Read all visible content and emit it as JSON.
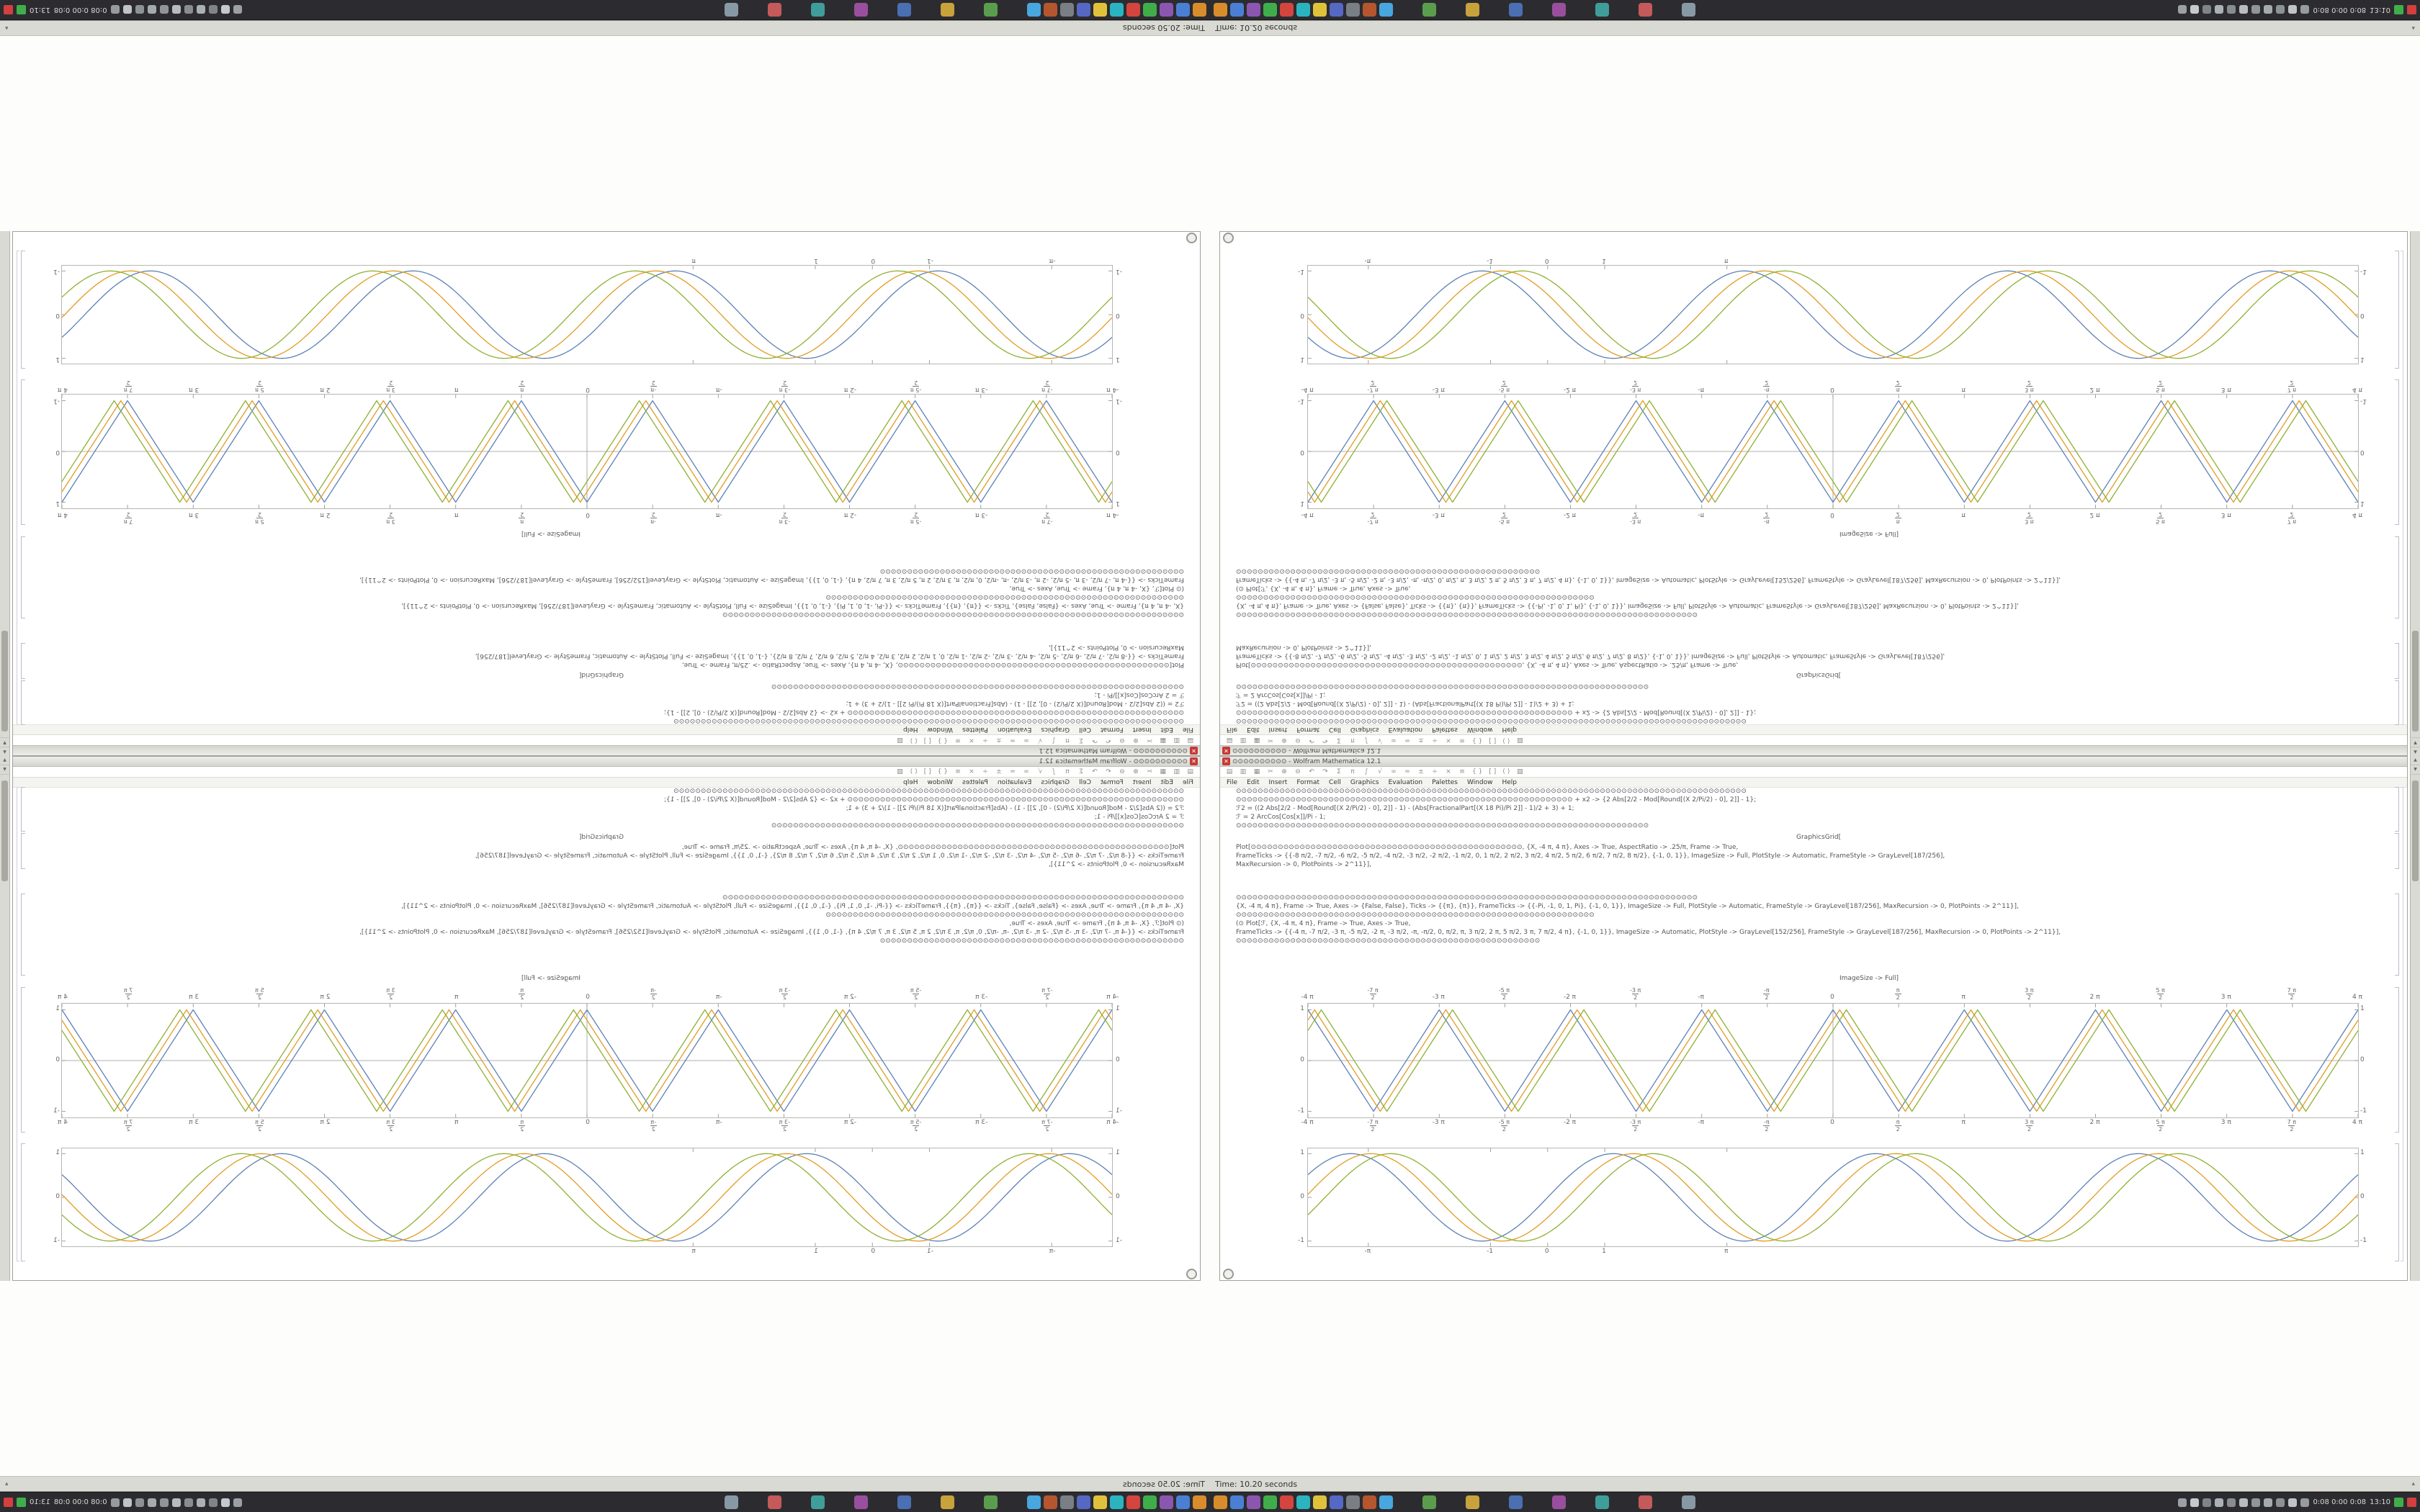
{
  "app": {
    "name": "Wolfram Mathematica",
    "version": "12.1"
  },
  "window": {
    "title": "⊙⊙⊙⊙⊙⊙⊙⊙⊙⊙ - Wolfram Mathematica 12.1",
    "close_glyph": "✕",
    "menu_items": [
      "File",
      "Edit",
      "Insert",
      "Format",
      "Cell",
      "Graphics",
      "Evaluation",
      "Palettes",
      "Window",
      "Help"
    ],
    "toolbar_glyphs": [
      "▤",
      "▥",
      "▦",
      "✂",
      "⊕",
      "⊖",
      "↶",
      "↷",
      "Σ",
      "π",
      "∫",
      "√",
      "∞",
      "≈",
      "±",
      "÷",
      "×",
      "≡",
      "{ }",
      "[ ]",
      "( )",
      "▧"
    ]
  },
  "scrollbar": {
    "up_glyph": "▲",
    "down_glyph": "▼"
  },
  "code_cells": {
    "cell1_lines": [
      "⊙⊙⊙⊙⊙⊙⊙⊙⊙⊙⊙⊙⊙⊙⊙⊙⊙⊙⊙⊙⊙⊙⊙⊙⊙⊙⊙⊙⊙⊙⊙⊙⊙⊙⊙⊙⊙⊙⊙⊙⊙⊙⊙⊙⊙⊙⊙⊙⊙⊙⊙⊙⊙⊙⊙⊙⊙⊙⊙⊙⊙⊙⊙⊙⊙⊙⊙⊙⊙⊙⊙⊙⊙⊙⊙⊙⊙⊙⊙⊙⊙⊙⊙⊙⊙⊙⊙⊙⊙⊙⊙⊙⊙⊙",
      "⊙⊙⊙⊙⊙⊙⊙⊙⊙⊙⊙⊙⊙⊙⊙⊙⊙⊙⊙⊙⊙⊙⊙⊙⊙⊙⊙⊙⊙⊙⊙⊙⊙⊙⊙⊙⊙⊙⊙⊙⊙⊙⊙⊙⊙⊙⊙⊙⊙⊙⊙⊙⊙⊙⊙⊙⊙⊙⊙⊙⊙⊙ + x2 -> {2 Abs[2/2 - Mod[Round[(X 2/Pi/2) - 0], 2]] - 1};",
      "ℱ2 = ((2 Abs[2/2 - Mod[Round[(X 2/Pi/2) - 0], 2]] - 1) - (Abs[FractionalPart[(X 18 Pi)/Pi 2]] - 1)/2 + 3) + 1;",
      "ℱ = 2 ArcCos[Cos[x]]/Pi - 1;",
      "⊙⊙⊙⊙⊙⊙⊙⊙⊙⊙⊙⊙⊙⊙⊙⊙⊙⊙⊙⊙⊙⊙⊙⊙⊙⊙⊙⊙⊙⊙⊙⊙⊙⊙⊙⊙⊙⊙⊙⊙⊙⊙⊙⊙⊙⊙⊙⊙⊙⊙⊙⊙⊙⊙⊙⊙⊙⊙⊙⊙⊙⊙⊙⊙⊙⊙⊙⊙⊙⊙⊙⊙⊙⊙⊙⊙"
    ],
    "graphicsgrid_line": "GraphicsGrid[",
    "cell2_lines": [
      "Plot[⊙⊙⊙⊙⊙⊙⊙⊙⊙⊙⊙⊙⊙⊙⊙⊙⊙⊙⊙⊙⊙⊙⊙⊙⊙⊙⊙⊙⊙⊙⊙⊙⊙⊙⊙⊙⊙⊙⊙⊙⊙⊙⊙⊙⊙⊙⊙⊙⊙⊙, {X, -4 π, 4 π}, Axes -> True, AspectRatio -> .25/π, Frame -> True,",
      "FrameTicks -> {{-8 π/2, -7 π/2, -6 π/2, -5 π/2, -4 π/2, -3 π/2, -2 π/2, -1 π/2, 0, 1 π/2, 2 π/2, 3 π/2, 4 π/2, 5 π/2, 6 π/2, 7 π/2, 8 π/2}, {-1, 0, 1}}, ImageSize -> Full, PlotStyle -> Automatic, FrameStyle -> GrayLevel[187/256],",
      "MaxRecursion -> 0, PlotPoints -> 2^11}],"
    ],
    "cell3_lines": [
      "⊙⊙⊙⊙⊙⊙⊙⊙⊙⊙⊙⊙⊙⊙⊙⊙⊙⊙⊙⊙⊙⊙⊙⊙⊙⊙⊙⊙⊙⊙⊙⊙⊙⊙⊙⊙⊙⊙⊙⊙⊙⊙⊙⊙⊙⊙⊙⊙⊙⊙⊙⊙⊙⊙⊙⊙⊙⊙⊙⊙⊙⊙⊙⊙⊙⊙⊙⊙⊙⊙⊙⊙⊙⊙⊙⊙⊙⊙⊙⊙⊙⊙⊙⊙⊙",
      "{X, -4 π, 4 π}, Frame -> True, Axes -> {False, False}, Ticks -> {{π}, {π}}, FrameTicks -> {{-Pi, -1, 0, 1, Pi}, {-1, 0, 1}}, ImageSize -> Full, PlotStyle -> Automatic, FrameStyle -> GrayLevel[187/256], MaxRecursion -> 0, PlotPoints -> 2^11}],",
      "⊙⊙⊙⊙⊙⊙⊙⊙⊙⊙⊙⊙⊙⊙⊙⊙⊙⊙⊙⊙⊙⊙⊙⊙⊙⊙⊙⊙⊙⊙⊙⊙⊙⊙⊙⊙⊙⊙⊙⊙⊙⊙⊙⊙⊙⊙⊙⊙⊙⊙⊙⊙⊙⊙⊙⊙⊙⊙⊙⊙⊙⊙⊙⊙⊙⊙",
      "(⊙ Plot[ℱ, {X, -4 π, 4 π}, Frame -> True, Axes -> True,",
      "FrameTicks -> {{-4 π, -7 π/2, -3 π, -5 π/2, -2 π, -3 π/2, -π, -π/2, 0, π/2, π, 3 π/2, 2 π, 5 π/2, 3 π, 7 π/2, 4 π}, {-1, 0, 1}}, ImageSize -> Automatic, PlotStyle -> GrayLevel[152/256], FrameStyle -> GrayLevel[187/256], MaxRecursion -> 0, PlotPoints -> 2^11}],",
      "⊙⊙⊙⊙⊙⊙⊙⊙⊙⊙⊙⊙⊙⊙⊙⊙⊙⊙⊙⊙⊙⊙⊙⊙⊙⊙⊙⊙⊙⊙⊙⊙⊙⊙⊙⊙⊙⊙⊙⊙⊙⊙⊙⊙⊙⊙⊙⊙⊙⊙⊙⊙⊙⊙⊙⊙"
    ],
    "closing_line": "ImageSize -> Full]"
  },
  "chart_data": [
    {
      "type": "line",
      "name": "triangle-wave-plot",
      "title": "",
      "xlabel": "",
      "ylabel": "",
      "xlim": [
        -12.566,
        12.566
      ],
      "ylim": [
        -1.12,
        1.12
      ],
      "frame": true,
      "axes": true,
      "grid": false,
      "label_sides": {
        "top": true,
        "bottom": true,
        "left": true,
        "right": true
      },
      "x_ticks": [
        {
          "v": -12.566,
          "l": "-4 π"
        },
        {
          "v": -10.996,
          "l": "-7 π/2"
        },
        {
          "v": -9.4248,
          "l": "-3 π"
        },
        {
          "v": -7.854,
          "l": "-5 π/2"
        },
        {
          "v": -6.2832,
          "l": "-2 π"
        },
        {
          "v": -4.7124,
          "l": "-3 π/2"
        },
        {
          "v": -3.1416,
          "l": "-π"
        },
        {
          "v": -1.5708,
          "l": "-π/2"
        },
        {
          "v": 0,
          "l": "0"
        },
        {
          "v": 1.5708,
          "l": "π/2"
        },
        {
          "v": 3.1416,
          "l": "π"
        },
        {
          "v": 4.7124,
          "l": "3 π/2"
        },
        {
          "v": 6.2832,
          "l": "2 π"
        },
        {
          "v": 7.854,
          "l": "5 π/2"
        },
        {
          "v": 9.4248,
          "l": "3 π"
        },
        {
          "v": 10.996,
          "l": "7 π/2"
        },
        {
          "v": 12.566,
          "l": "4 π"
        }
      ],
      "y_ticks": [
        {
          "v": -1,
          "l": "-1"
        },
        {
          "v": 0,
          "l": "0"
        },
        {
          "v": 1,
          "l": "1"
        }
      ],
      "series": [
        {
          "name": "wave-1",
          "color": "#5E81B5",
          "wave": "triangle",
          "period": 3.1416,
          "phase": 0
        },
        {
          "name": "wave-2",
          "color": "#E19C24",
          "wave": "triangle",
          "period": 3.1416,
          "phase": 0.16
        },
        {
          "name": "wave-3",
          "color": "#8FB032",
          "wave": "triangle",
          "period": 3.1416,
          "phase": 0.32
        }
      ]
    },
    {
      "type": "line",
      "name": "sine-wave-plot",
      "title": "",
      "xlabel": "",
      "ylabel": "",
      "xlim": [
        -4.2,
        14.2
      ],
      "ylim": [
        -1.12,
        1.12
      ],
      "frame": true,
      "axes": false,
      "grid": false,
      "label_sides": {
        "top": false,
        "bottom": true,
        "left": true,
        "right": true
      },
      "x_ticks": [
        {
          "v": -3.1416,
          "l": "-π"
        },
        {
          "v": -1,
          "l": "-1"
        },
        {
          "v": 0,
          "l": "0"
        },
        {
          "v": 1,
          "l": "1"
        },
        {
          "v": 3.1416,
          "l": "π"
        }
      ],
      "y_ticks": [
        {
          "v": -1,
          "l": "-1"
        },
        {
          "v": 0,
          "l": "0"
        },
        {
          "v": 1,
          "l": "1"
        }
      ],
      "series": [
        {
          "name": "wave-1",
          "color": "#5E81B5",
          "wave": "sine",
          "period": 4.6,
          "phase": 0
        },
        {
          "name": "wave-2",
          "color": "#E19C24",
          "wave": "sine",
          "period": 4.6,
          "phase": 0.35
        },
        {
          "name": "wave-3",
          "color": "#8FB032",
          "wave": "sine",
          "period": 4.6,
          "phase": 0.7
        }
      ]
    }
  ],
  "strip": {
    "time_text_right": "Time: 10.20 seconds",
    "time_text_left": "Time: 20.50 seconds",
    "chevron": "▴"
  },
  "taskbar": {
    "status_text": "0:08  0:00  0:08",
    "clock": "13:10",
    "app_icons_main": [
      "#d98c2b",
      "#4a7fd4",
      "#8a56b0",
      "#3fae4a",
      "#d4453f",
      "#2bb3c0",
      "#e0c23a",
      "#5568c4",
      "#7a7f86",
      "#b5562f",
      "#49a7e0"
    ],
    "app_icons_secondary": [
      "#5a9e4d",
      "#c8a23b",
      "#4a6fb3",
      "#9a4f9e",
      "#3f9e9a",
      "#c45a5a",
      "#8899a6"
    ],
    "tray_icon_colors": [
      "#9aa0a6",
      "#c5c9cd",
      "#7f8489",
      "#aab0b6",
      "#888d92",
      "#b8bcc0",
      "#90959a",
      "#a5aaaf",
      "#8d9297",
      "#c0c4c8",
      "#969b9f"
    ]
  },
  "colors": {
    "plot_blue": "#5E81B5",
    "plot_gold": "#E19C24",
    "plot_green": "#8FB032",
    "taskbar_bg": "#2c2c30",
    "close_red": "#c63a35",
    "frame_gray": "#b6b6b0"
  }
}
